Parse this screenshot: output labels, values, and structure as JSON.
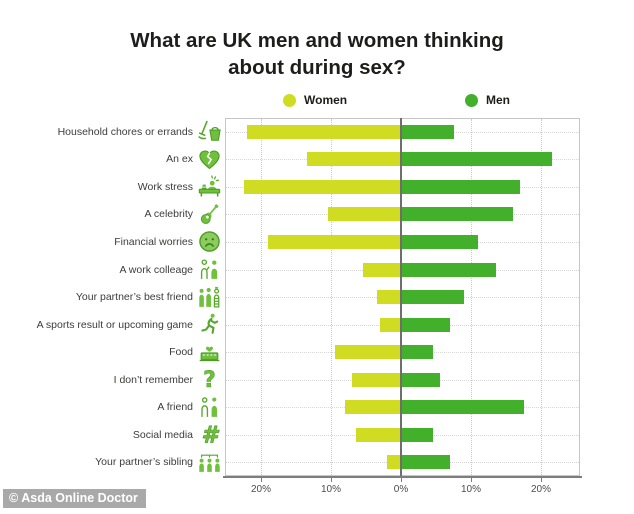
{
  "title": {
    "full": "What are UK men and women thinking about during sex?",
    "line1": "What are UK men and women thinking",
    "line2": "about during sex?"
  },
  "legend": {
    "women": "Women",
    "men": "Men"
  },
  "colors": {
    "women_bar": "#cfdc22",
    "men_bar": "#42b02b",
    "icon_green": "#55a82b",
    "title_text": "#1d1d1b",
    "credit_bg": "#a9a9a9"
  },
  "footer": {
    "credit": "© Asda Online Doctor"
  },
  "chart_data": {
    "type": "bar",
    "variant": "diverging-horizontal",
    "title": "What are UK men and women thinking about during sex?",
    "unit": "%",
    "grid": true,
    "legend_position": "top",
    "categories": [
      "Household chores or errands",
      "An ex",
      "Work stress",
      "A celebrity",
      "Financial worries",
      "A work colleage",
      "Your partner’s best friend",
      "A sports result or upcoming game",
      "Food",
      "I don’t remember",
      "A friend",
      "Social media",
      "Your partner’s sibling"
    ],
    "series": [
      {
        "name": "Women",
        "side": "left",
        "color": "#cfdc22",
        "values": [
          22,
          13.5,
          22.5,
          10.5,
          19,
          5.5,
          3.5,
          3,
          9.5,
          7,
          8,
          6.5,
          2
        ]
      },
      {
        "name": "Men",
        "side": "right",
        "color": "#42b02b",
        "values": [
          7.5,
          21.5,
          17,
          16,
          11,
          13.5,
          9,
          7,
          4.5,
          5.5,
          17.5,
          4.5,
          7
        ]
      }
    ],
    "x_ticks": [
      "20%",
      "10%",
      "0%",
      "10%",
      "20%"
    ],
    "x_tick_values": [
      -20,
      -10,
      0,
      10,
      20
    ],
    "xlim_pct": [
      -25,
      25.5
    ],
    "icons": [
      "mop-bucket",
      "broken-heart",
      "stress-desk",
      "guitar",
      "worried-face",
      "colleagues",
      "best-friends",
      "runner",
      "cake",
      "question-mark",
      "friends",
      "hashtag",
      "family"
    ]
  }
}
